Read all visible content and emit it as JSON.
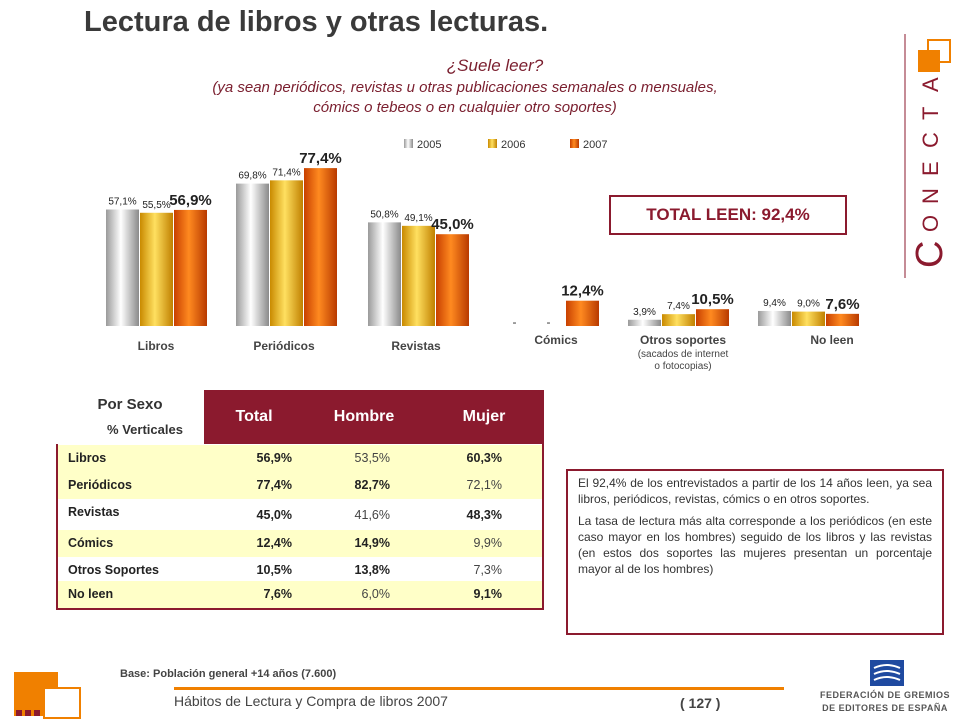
{
  "title": "Lectura de libros y otras lecturas.",
  "question": "¿Suele leer?",
  "subquestion_line1": "(ya sean periódicos, revistas u otras publicaciones semanales o mensuales,",
  "subquestion_line2": "cómics o tebeos o en cualquier otro soportes)",
  "colors": {
    "accent": "#8b1a2e",
    "orange": "#f08000",
    "s2005": "#c8c8c8",
    "s2006": "#f0b400",
    "s2007": "#e85800"
  },
  "chart_data": {
    "type": "bar",
    "legend": [
      "2005",
      "2006",
      "2007"
    ],
    "legend_placement": "top",
    "groups": [
      {
        "category": "Libros",
        "values": [
          57.1,
          55.5,
          56.9
        ],
        "labels": [
          "57,1%",
          "55,5%",
          "56,9%"
        ]
      },
      {
        "category": "Periódicos",
        "values": [
          69.8,
          71.4,
          77.4
        ],
        "labels": [
          "69,8%",
          "71,4%",
          "77,4%"
        ]
      },
      {
        "category": "Revistas",
        "values": [
          50.8,
          49.1,
          45.0
        ],
        "labels": [
          "50,8%",
          "49,1%",
          "45,0%"
        ]
      },
      {
        "category": "Cómics",
        "values": [
          null,
          null,
          12.4
        ],
        "labels": [
          "-",
          "-",
          "12,4%"
        ]
      },
      {
        "category": "Otros soportes",
        "subcategory": "(sacados de internet o fotocopias)",
        "values": [
          3.9,
          7.4,
          10.5
        ],
        "labels": [
          "3,9%",
          "7,4%",
          "10,5%"
        ]
      },
      {
        "category": "No leen",
        "values": [
          9.4,
          9.0,
          7.6
        ],
        "labels": [
          "9,4%",
          "9,0%",
          "7,6%"
        ]
      }
    ]
  },
  "total_leen": "TOTAL LEEN: 92,4%",
  "table": {
    "title": "Por Sexo",
    "subtitle": "% Verticales",
    "headers": [
      "Total",
      "Hombre",
      "Mujer"
    ],
    "rows": [
      {
        "label": "Libros",
        "values": [
          "56,9%",
          "53,5%",
          "60,3%"
        ]
      },
      {
        "label": "Periódicos",
        "values": [
          "77,4%",
          "82,7%",
          "72,1%"
        ]
      },
      {
        "label": "Revistas",
        "values": [
          "45,0%",
          "41,6%",
          "48,3%"
        ]
      },
      {
        "label": "Cómics",
        "values": [
          "12,4%",
          "14,9%",
          "9,9%"
        ]
      },
      {
        "label": "Otros Soportes",
        "values": [
          "10,5%",
          "13,8%",
          "7,3%"
        ]
      },
      {
        "label": "No leen",
        "values": [
          "7,6%",
          "6,0%",
          "9,1%"
        ]
      }
    ]
  },
  "note": {
    "p1": "El 92,4% de los entrevistados a partir de los 14 años leen, ya sea libros, periódicos, revistas, cómics o en otros soportes.",
    "p2": "La tasa de lectura más alta corresponde a los periódicos (en este caso mayor en los hombres) seguido de los libros y las revistas (en estos dos soportes las mujeres presentan un porcentaje mayor al de los hombres)"
  },
  "footer": {
    "base": "Base:  Población general +14 años (7.600)",
    "title": "Hábitos de Lectura y Compra de libros 2007",
    "page": "( 127 )",
    "federation_line1": "FEDERACIÓN DE GREMIOS",
    "federation_line2": "DE EDITORES DE ESPAÑA"
  },
  "brand": {
    "letters": [
      "C",
      "O",
      "N",
      "E",
      "C",
      "T",
      "A"
    ]
  }
}
